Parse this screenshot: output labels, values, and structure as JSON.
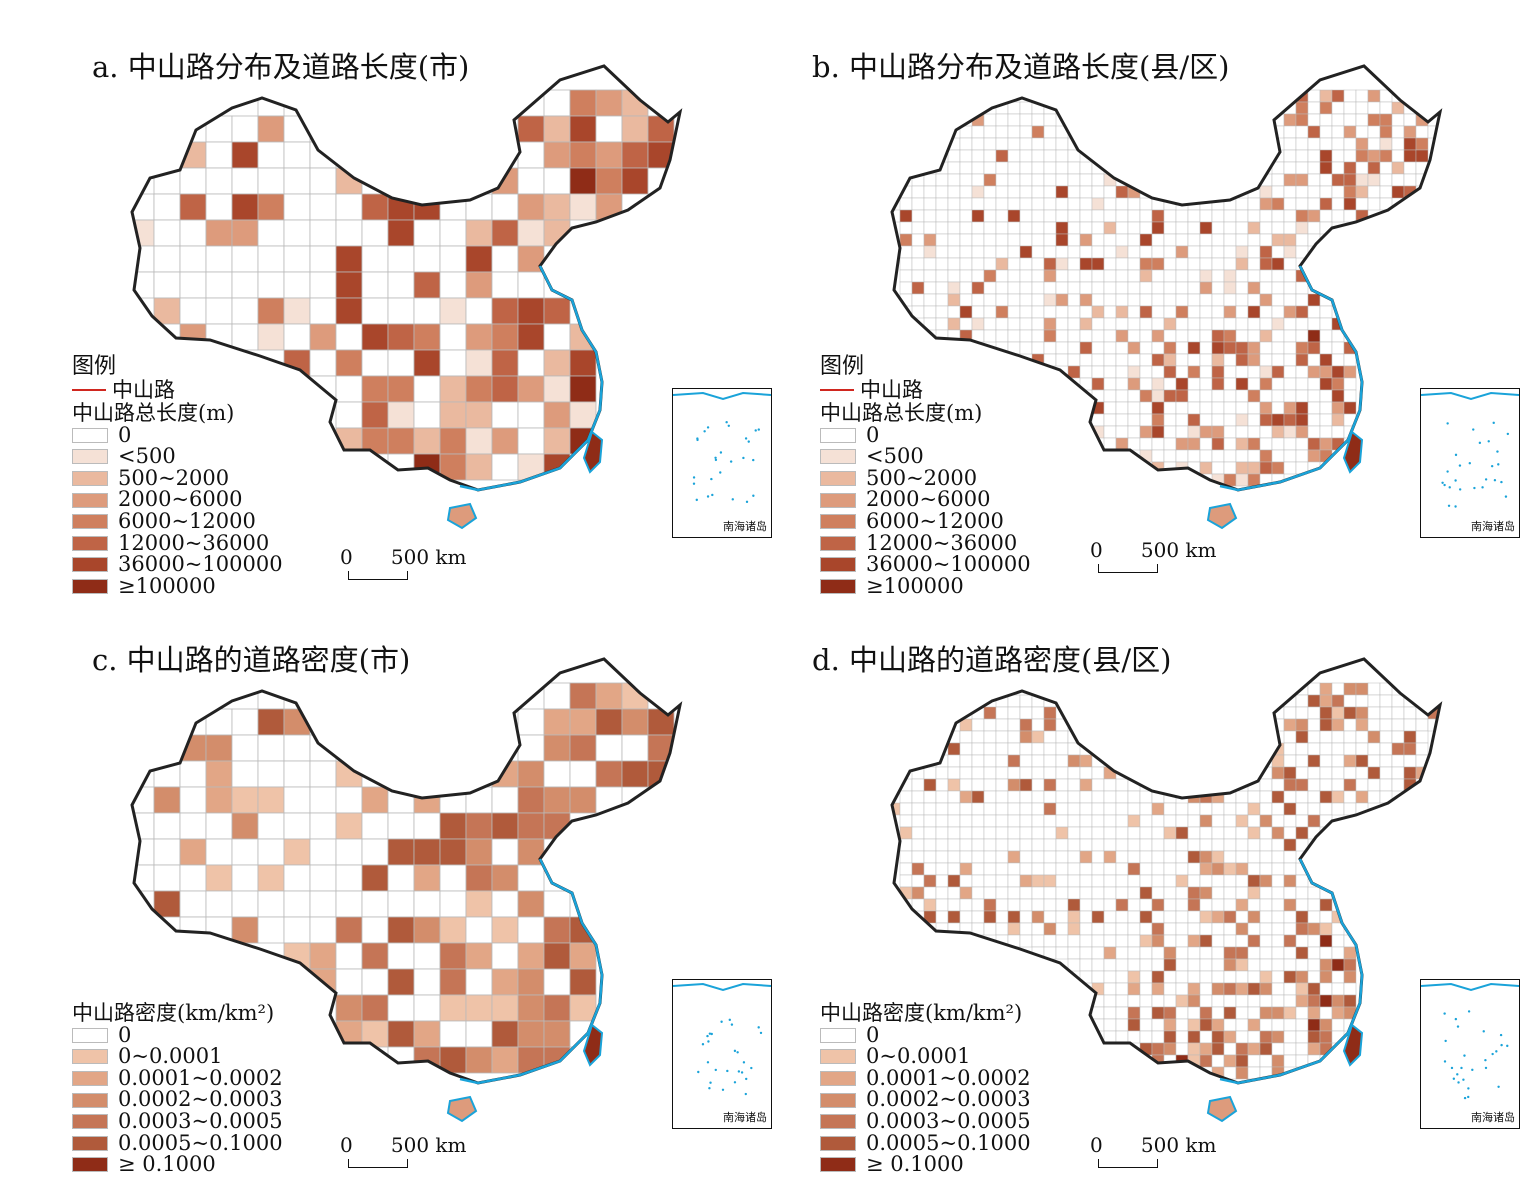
{
  "panels": [
    {
      "title": "a. 中山路分布及道路长度(市)"
    },
    {
      "title": "b. 中山路分布及道路长度(县/区)"
    },
    {
      "title": "c. 中山路的道路密度(市)"
    },
    {
      "title": "d. 中山路的道路密度(县/区)"
    }
  ],
  "length_legend": {
    "heading": "图例",
    "road_label": "中山路",
    "subtitle": "中山路总长度(m)",
    "classes": [
      "0",
      "<500",
      "500~2000",
      "2000~6000",
      "6000~12000",
      "12000~36000",
      "36000~100000",
      "≥100000"
    ]
  },
  "density_legend": {
    "subtitle": "中山路密度(km/km²)",
    "classes": [
      "0",
      "0~0.0001",
      "0.0001~0.0002",
      "0.0002~0.0003",
      "0.0003~0.0005",
      "0.0005~0.1000",
      "≥ 0.1000"
    ]
  },
  "colors": {
    "road": "#d0271f",
    "boundary": "#222222",
    "coast": "#1aa3d9",
    "length_ramp": [
      "#ffffff",
      "#f5e1d6",
      "#eab99f",
      "#dd9b7c",
      "#cf7f5e",
      "#bf6446",
      "#a9462b",
      "#8f2c17"
    ],
    "density_ramp": [
      "#ffffff",
      "#efc3a8",
      "#e2a686",
      "#d38d6b",
      "#c57556",
      "#b05a3b",
      "#8f2c17"
    ]
  },
  "scale_bar": {
    "zero": "0",
    "label": "500 km"
  },
  "inset_label": "南海诸岛"
}
